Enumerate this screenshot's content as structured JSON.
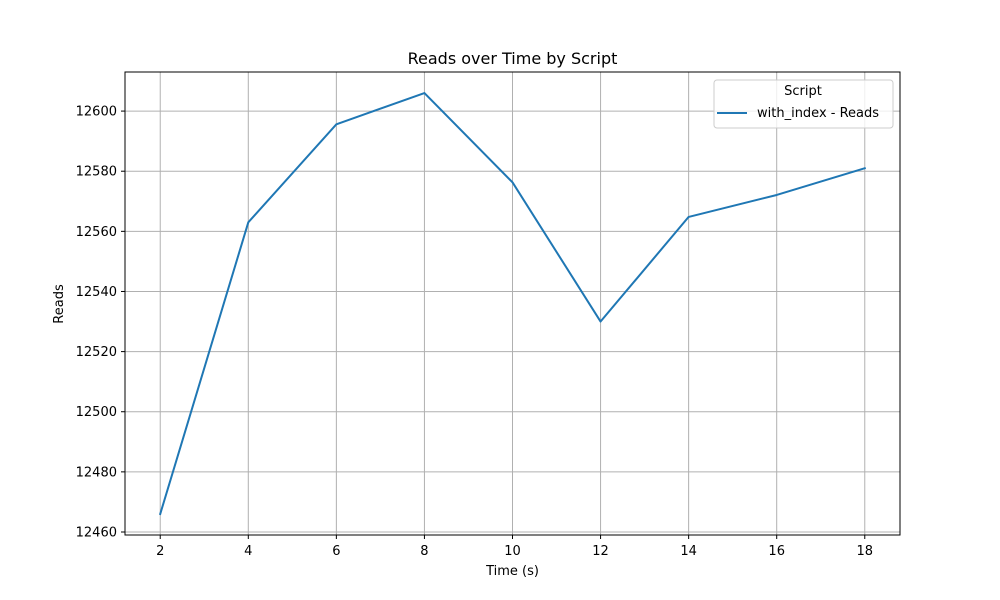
{
  "chart_data": {
    "type": "line",
    "title": "Reads over Time by Script",
    "xlabel": "Time (s)",
    "ylabel": "Reads",
    "xlim": [
      1.2,
      18.8
    ],
    "ylim": [
      12459,
      12613
    ],
    "x_ticks": [
      2,
      4,
      6,
      8,
      10,
      12,
      14,
      16,
      18
    ],
    "y_ticks": [
      12460,
      12480,
      12500,
      12520,
      12540,
      12560,
      12580,
      12600
    ],
    "grid": true,
    "legend": {
      "title": "Script",
      "position": "top-right"
    },
    "series": [
      {
        "name": "with_index - Reads",
        "color": "#1f77b4",
        "x": [
          2,
          4,
          6,
          8,
          10,
          12,
          14,
          16,
          18
        ],
        "y": [
          12466,
          12563,
          12595.6,
          12606,
          12576.3,
          12530,
          12564.8,
          12572.1,
          12581
        ]
      }
    ]
  }
}
